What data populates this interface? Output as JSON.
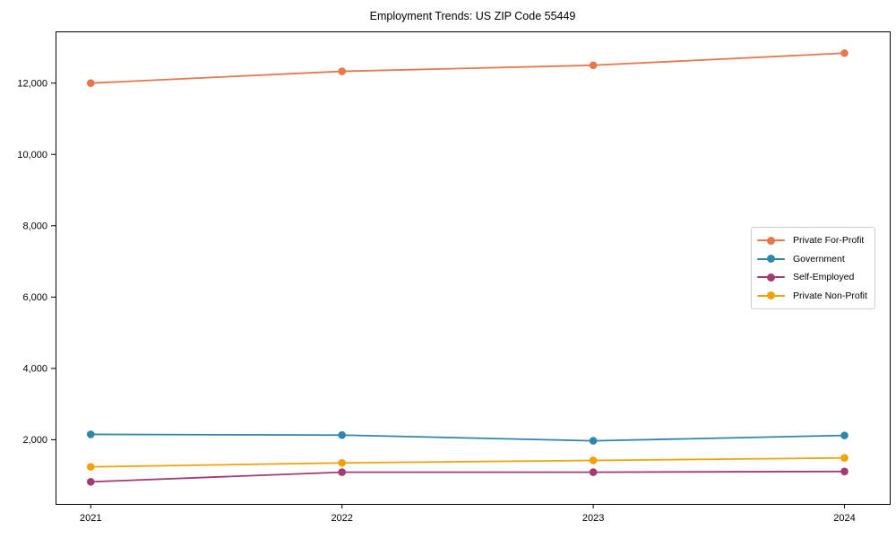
{
  "title": "Employment Trends: US ZIP Code 55449",
  "chart_data": {
    "type": "line",
    "title": "Employment Trends: US ZIP Code 55449",
    "xlabel": "",
    "ylabel": "",
    "x": [
      2021,
      2022,
      2023,
      2024
    ],
    "x_tick_labels": [
      "2021",
      "2022",
      "2023",
      "2024"
    ],
    "y_ticks": [
      2000,
      4000,
      6000,
      8000,
      10000,
      12000
    ],
    "y_tick_labels": [
      "2,000",
      "4,000",
      "6,000",
      "8,000",
      "10,000",
      "12,000"
    ],
    "xlim": [
      2020.86,
      2024.18
    ],
    "ylim": [
      200,
      13450
    ],
    "grid": false,
    "legend_position": "center right",
    "marker": "circle",
    "series": [
      {
        "name": "Private For-Profit",
        "color": "#E8764B",
        "values": [
          12000,
          12330,
          12500,
          12840
        ]
      },
      {
        "name": "Government",
        "color": "#2E86AB",
        "values": [
          2150,
          2130,
          1970,
          2120
        ]
      },
      {
        "name": "Self-Employed",
        "color": "#A23B72",
        "values": [
          820,
          1090,
          1090,
          1110
        ]
      },
      {
        "name": "Private Non-Profit",
        "color": "#F2A104",
        "values": [
          1240,
          1350,
          1420,
          1490
        ]
      }
    ]
  }
}
